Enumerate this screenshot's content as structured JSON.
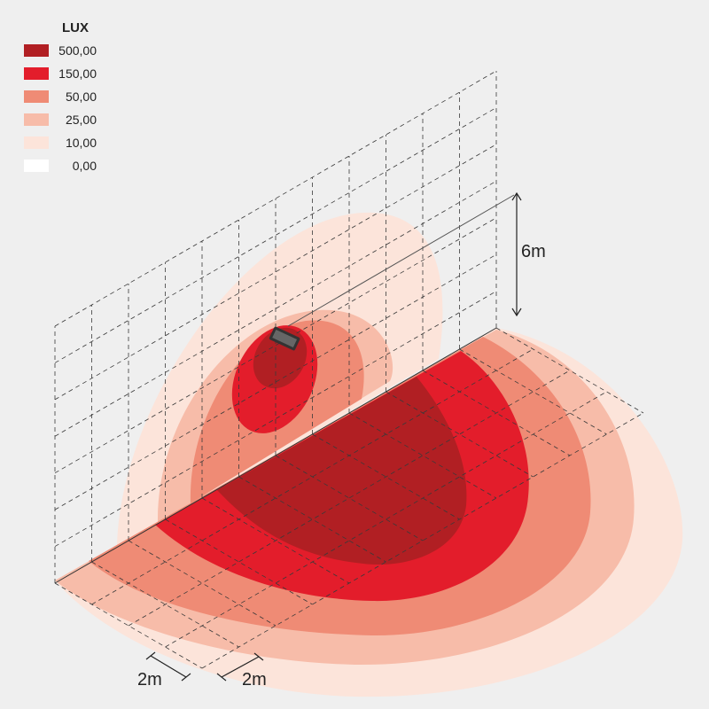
{
  "legend": {
    "title": "LUX",
    "items": [
      {
        "label": "500,00",
        "color": "#b11f23"
      },
      {
        "label": "150,00",
        "color": "#e31d2b"
      },
      {
        "label": "50,00",
        "color": "#ef8b75"
      },
      {
        "label": "25,00",
        "color": "#f7bca9"
      },
      {
        "label": "10,00",
        "color": "#fce4da"
      },
      {
        "label": "0,00",
        "color": "#ffffff"
      }
    ]
  },
  "dimensions": {
    "height": "6m",
    "width": "2m",
    "depth": "2m"
  }
}
